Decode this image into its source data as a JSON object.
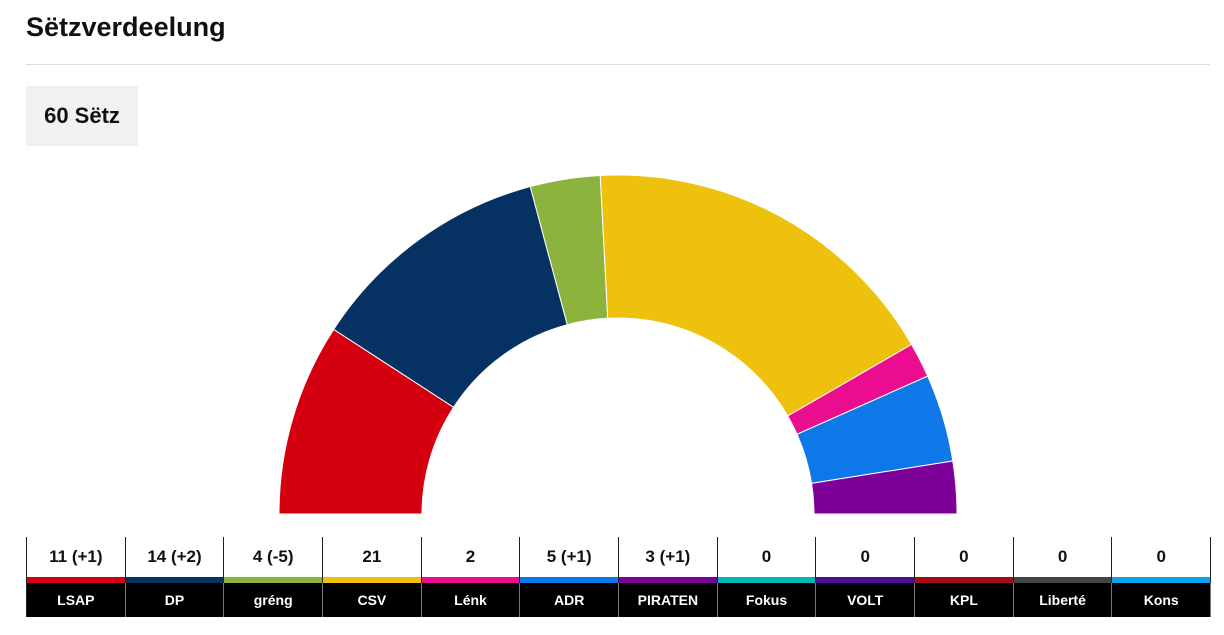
{
  "title": "Sëtzverdeelung",
  "total_label": "60 Sëtz",
  "chart_data": {
    "type": "pie",
    "subtype": "semicircle-parliament",
    "total": 60,
    "parties": [
      {
        "name": "LSAP",
        "seats": 11,
        "label": "11 (+1)",
        "color": "#d5000f"
      },
      {
        "name": "DP",
        "seats": 14,
        "label": "14 (+2)",
        "color": "#053263"
      },
      {
        "name": "gréng",
        "seats": 4,
        "label": "4 (-5)",
        "color": "#8db33f"
      },
      {
        "name": "CSV",
        "seats": 21,
        "label": "21",
        "color": "#edc10c"
      },
      {
        "name": "Lénk",
        "seats": 2,
        "label": "2",
        "color": "#ec0c8f"
      },
      {
        "name": "ADR",
        "seats": 5,
        "label": "5 (+1)",
        "color": "#0f78e8"
      },
      {
        "name": "PIRATEN",
        "seats": 3,
        "label": "3 (+1)",
        "color": "#7d0098"
      },
      {
        "name": "Fokus",
        "seats": 0,
        "label": "0",
        "color": "#00b5b5"
      },
      {
        "name": "VOLT",
        "seats": 0,
        "label": "0",
        "color": "#4b0f96"
      },
      {
        "name": "KPL",
        "seats": 0,
        "label": "0",
        "color": "#a50d12"
      },
      {
        "name": "Liberté",
        "seats": 0,
        "label": "0",
        "color": "#444444"
      },
      {
        "name": "Kons",
        "seats": 0,
        "label": "0",
        "color": "#0aa5e8"
      }
    ]
  }
}
